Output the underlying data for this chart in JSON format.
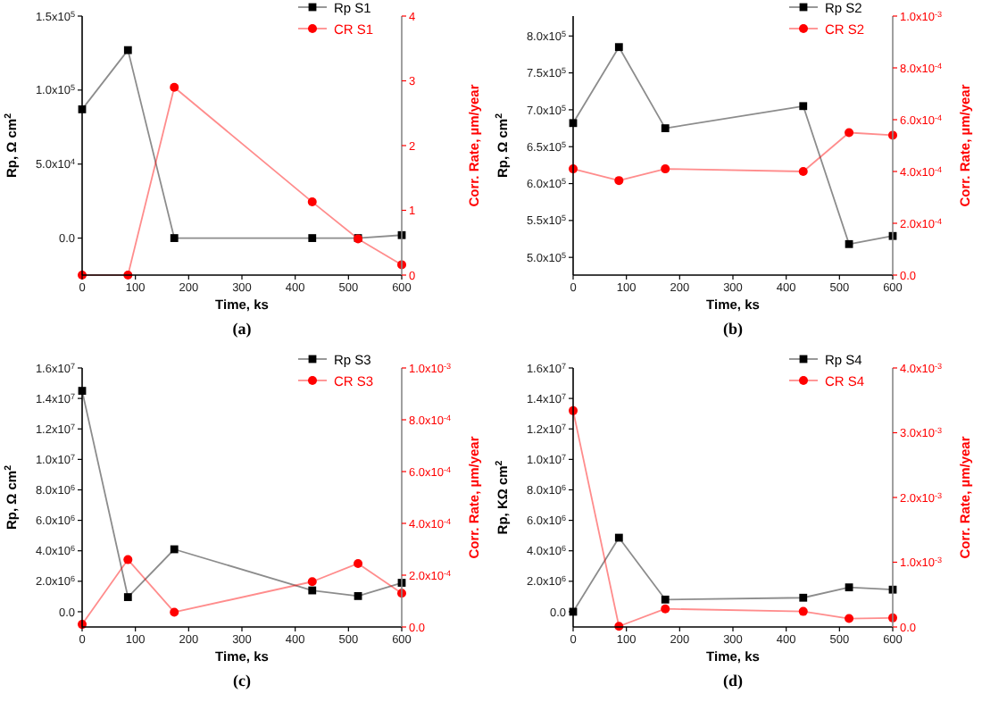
{
  "chart_data": [
    {
      "type": "line",
      "xlabel": "Time, ks",
      "ylabel": "Rp, Ω cm$^{2}$",
      "y2label": "Corr. Rate, µm/year",
      "annotations": [
        "(a)"
      ],
      "legend": "top right",
      "x": [
        0,
        86,
        173,
        432,
        518,
        600
      ],
      "xlim": [
        0,
        600
      ],
      "xticks": [
        0,
        100,
        200,
        300,
        400,
        500,
        600
      ],
      "ylim": [
        -25000,
        150000
      ],
      "yticks": [
        {
          "value": 0,
          "label": "0.0"
        },
        {
          "value": 50000,
          "label": "5.0x10$^{4}$"
        },
        {
          "value": 100000,
          "label": "1.0x10$^{5}$"
        },
        {
          "value": 150000,
          "label": "1.5x10$^{5}$"
        }
      ],
      "y2lim": [
        0,
        4
      ],
      "y2ticks": [
        0,
        1,
        2,
        3,
        4
      ],
      "series": [
        {
          "name": "Rp S1",
          "color": "#000000",
          "marker": "square",
          "values": [
            87000,
            127000,
            0,
            0,
            0,
            2000
          ]
        },
        {
          "name": "CR S1",
          "color": "#ff0000",
          "marker": "circle",
          "axis": "y2",
          "values": [
            0,
            0,
            2.9,
            1.13,
            0.56,
            0.16
          ]
        }
      ]
    },
    {
      "type": "line",
      "xlabel": "Time, ks",
      "ylabel": "Rp, Ω cm$^{2}$",
      "y2label": "Corr. Rate, µm/year",
      "annotations": [
        "(b)"
      ],
      "legend": "top right",
      "x": [
        0,
        86,
        173,
        432,
        518,
        600
      ],
      "xlim": [
        0,
        600
      ],
      "xticks": [
        0,
        100,
        200,
        300,
        400,
        500,
        600
      ],
      "ylim": [
        476000,
        827000
      ],
      "yticks": [
        {
          "value": 500000,
          "label": "5.0x10$^{5}$"
        },
        {
          "value": 550000,
          "label": "5.5x10$^{5}$"
        },
        {
          "value": 600000,
          "label": "6.0x10$^{5}$"
        },
        {
          "value": 650000,
          "label": "6.5x10$^{5}$"
        },
        {
          "value": 700000,
          "label": "7.0x10$^{5}$"
        },
        {
          "value": 750000,
          "label": "7.5x10$^{5}$"
        },
        {
          "value": 800000,
          "label": "8.0x10$^{5}$"
        }
      ],
      "y2lim": [
        0,
        0.001
      ],
      "y2ticks": [
        {
          "value": 0,
          "label": "0.0"
        },
        {
          "value": 0.0002,
          "label": "2.0x10$^{-4}$"
        },
        {
          "value": 0.0004,
          "label": "4.0x10$^{-4}$"
        },
        {
          "value": 0.0006,
          "label": "6.0x10$^{-4}$"
        },
        {
          "value": 0.0008,
          "label": "8.0x10$^{-4}$"
        },
        {
          "value": 0.001,
          "label": "1.0x10$^{-3}$"
        }
      ],
      "series": [
        {
          "name": "Rp S2",
          "color": "#000000",
          "marker": "square",
          "values": [
            682000,
            785000,
            675000,
            705000,
            518000,
            529000
          ]
        },
        {
          "name": "CR S2",
          "color": "#ff0000",
          "marker": "circle",
          "axis": "y2",
          "values": [
            0.00041,
            0.000365,
            0.00041,
            0.0004,
            0.00055,
            0.00054
          ]
        }
      ]
    },
    {
      "type": "line",
      "xlabel": "Time, ks",
      "ylabel": "Rp, Ω cm$^{2}$",
      "y2label": "Corr. Rate, µm/year",
      "annotations": [
        "(c)"
      ],
      "legend": "top right",
      "x": [
        0,
        86,
        173,
        432,
        518,
        600
      ],
      "xlim": [
        0,
        600
      ],
      "xticks": [
        0,
        100,
        200,
        300,
        400,
        500,
        600
      ],
      "ylim": [
        -1000000,
        16000000
      ],
      "yticks": [
        {
          "value": 0,
          "label": "0.0"
        },
        {
          "value": 2000000,
          "label": "2.0x10$^{6}$"
        },
        {
          "value": 4000000,
          "label": "4.0x10$^{6}$"
        },
        {
          "value": 6000000,
          "label": "6.0x10$^{6}$"
        },
        {
          "value": 8000000,
          "label": "8.0x10$^{6}$"
        },
        {
          "value": 10000000,
          "label": "1.0x10$^{7}$"
        },
        {
          "value": 12000000,
          "label": "1.2x10$^{7}$"
        },
        {
          "value": 14000000,
          "label": "1.4x10$^{7}$"
        },
        {
          "value": 16000000,
          "label": "1.6x10$^{7}$"
        }
      ],
      "y2lim": [
        0,
        0.001
      ],
      "y2ticks": [
        {
          "value": 0,
          "label": "0.0"
        },
        {
          "value": 0.0002,
          "label": "2.0x10$^{-4}$"
        },
        {
          "value": 0.0004,
          "label": "4.0x10$^{-4}$"
        },
        {
          "value": 0.0006,
          "label": "6.0x10$^{-4}$"
        },
        {
          "value": 0.0008,
          "label": "8.0x10$^{-4}$"
        },
        {
          "value": 0.001,
          "label": "1.0x10$^{-3}$"
        }
      ],
      "series": [
        {
          "name": "Rp S3",
          "color": "#000000",
          "marker": "square",
          "values": [
            14500000,
            960000,
            4100000,
            1400000,
            1030000,
            1900000
          ]
        },
        {
          "name": "CR S3",
          "color": "#ff0000",
          "marker": "circle",
          "axis": "y2",
          "values": [
            1e-05,
            0.00026,
            5.7e-05,
            0.000175,
            0.000245,
            0.00013
          ]
        }
      ]
    },
    {
      "type": "line",
      "xlabel": "Time, ks",
      "ylabel": "Rp, KΩ cm$^{2}$",
      "y2label": "Corr. Rate, µm/year",
      "annotations": [
        "(d)"
      ],
      "legend": "top right",
      "x": [
        0,
        86,
        173,
        432,
        518,
        600
      ],
      "xlim": [
        0,
        600
      ],
      "xticks": [
        0,
        100,
        200,
        300,
        400,
        500,
        600
      ],
      "ylim": [
        -1000000,
        16000000
      ],
      "yticks": [
        {
          "value": 0,
          "label": "0.0"
        },
        {
          "value": 2000000,
          "label": "2.0x10$^{6}$"
        },
        {
          "value": 4000000,
          "label": "4.0x10$^{6}$"
        },
        {
          "value": 6000000,
          "label": "6.0x10$^{6}$"
        },
        {
          "value": 8000000,
          "label": "8.0x10$^{6}$"
        },
        {
          "value": 10000000,
          "label": "1.0x10$^{7}$"
        },
        {
          "value": 12000000,
          "label": "1.2x10$^{7}$"
        },
        {
          "value": 14000000,
          "label": "1.4x10$^{7}$"
        },
        {
          "value": 16000000,
          "label": "1.6x10$^{7}$"
        }
      ],
      "y2lim": [
        0,
        0.004
      ],
      "y2ticks": [
        {
          "value": 0,
          "label": "0.0"
        },
        {
          "value": 0.001,
          "label": "1.0x10$^{-3}$"
        },
        {
          "value": 0.002,
          "label": "2.0x10$^{-3}$"
        },
        {
          "value": 0.003,
          "label": "3.0x10$^{-3}$"
        },
        {
          "value": 0.004,
          "label": "4.0x10$^{-3}$"
        }
      ],
      "series": [
        {
          "name": "Rp S4",
          "color": "#000000",
          "marker": "square",
          "values": [
            0,
            4860000,
            800000,
            920000,
            1600000,
            1450000
          ]
        },
        {
          "name": "CR S4",
          "color": "#ff0000",
          "marker": "circle",
          "axis": "y2",
          "values": [
            0.00334,
            1e-05,
            0.00028,
            0.00024,
            0.00013,
            0.00014
          ]
        }
      ]
    }
  ]
}
